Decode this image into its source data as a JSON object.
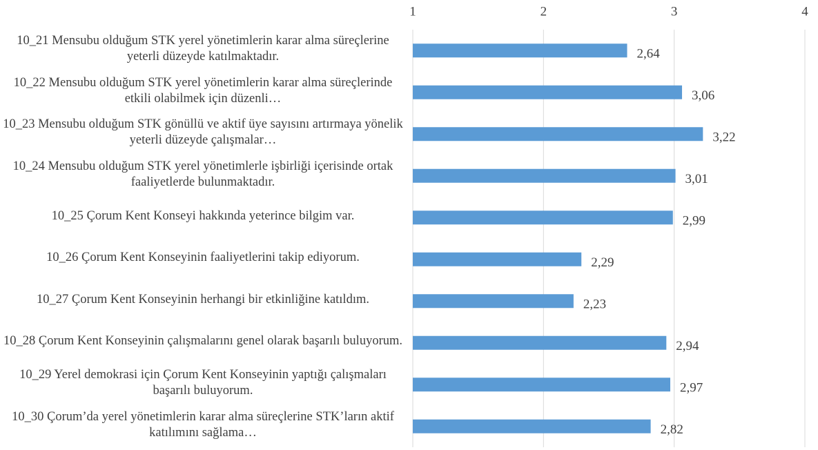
{
  "chart_data": {
    "type": "bar",
    "orientation": "horizontal",
    "categories": [
      "10_21 Mensubu olduğum STK yerel yönetimlerin karar alma süreçlerine yeterli düzeyde katılmaktadır.",
      "10_22 Mensubu olduğum STK yerel yönetimlerin karar alma süreçlerinde etkili olabilmek için düzenli…",
      "10_23 Mensubu olduğum STK gönüllü ve aktif üye sayısını artırmaya yönelik yeterli düzeyde çalışmalar…",
      "10_24 Mensubu olduğum STK yerel yönetimlerle işbirliği içerisinde ortak faaliyetlerde bulunmaktadır.",
      "10_25 Çorum Kent Konseyi hakkında yeterince bilgim var.",
      "10_26 Çorum Kent Konseyinin faaliyetlerini takip ediyorum.",
      "10_27 Çorum Kent Konseyinin herhangi bir etkinliğine katıldım.",
      "10_28 Çorum Kent Konseyinin çalışmalarını genel olarak başarılı buluyorum.",
      "10_29 Yerel demokrasi için Çorum Kent Konseyinin yaptığı çalışmaları başarılı buluyorum.",
      "10_30 Çorum’da yerel yönetimlerin karar alma süreçlerine STK’ların aktif katılımını sağlama…"
    ],
    "values": [
      2.64,
      3.06,
      3.22,
      3.01,
      2.99,
      2.29,
      2.23,
      2.94,
      2.97,
      2.82
    ],
    "value_labels": [
      "2,64",
      "3,06",
      "3,22",
      "3,01",
      "2,99",
      "2,29",
      "2,23",
      "2,94",
      "2,97",
      "2,82"
    ],
    "color": "#5b9bd5",
    "xlim": [
      1,
      4
    ],
    "xticks": [
      1,
      2,
      3,
      4
    ],
    "grid": true
  }
}
